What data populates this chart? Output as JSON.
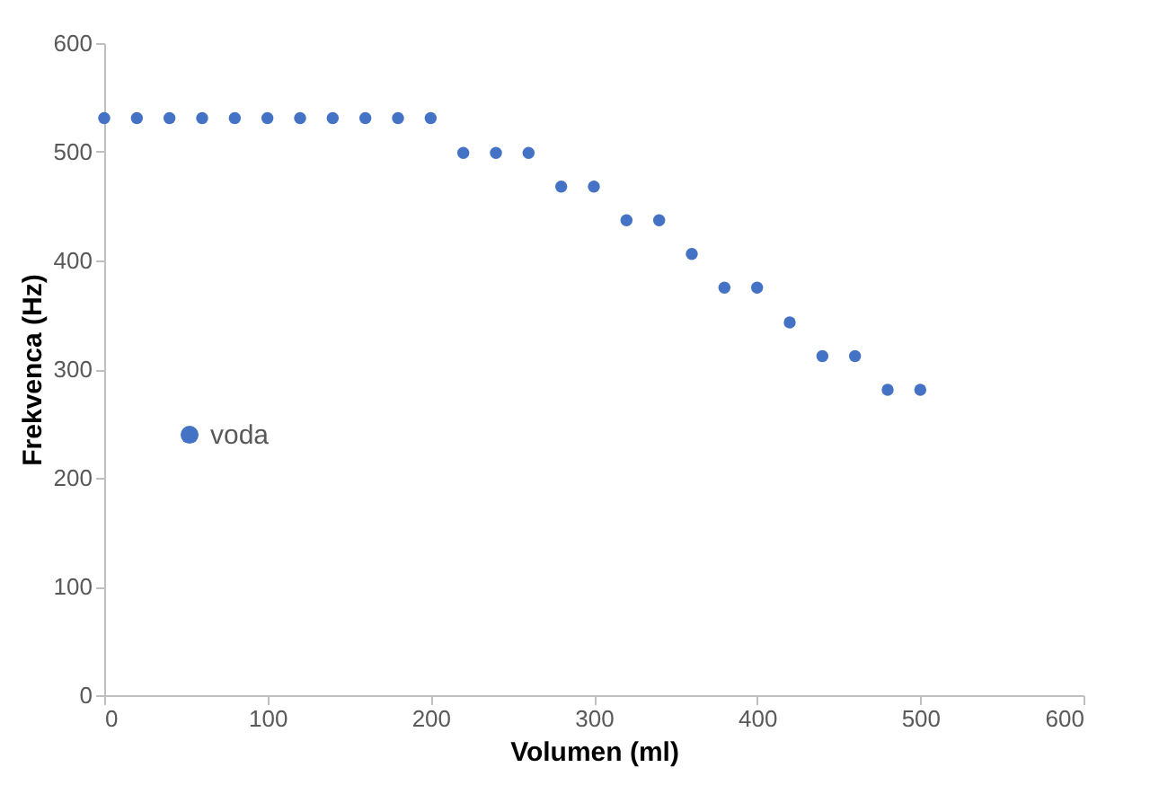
{
  "chart_data": {
    "type": "scatter",
    "xlabel": "Volumen (ml)",
    "ylabel": "Frekvenca (Hz)",
    "x": [
      0,
      20,
      40,
      60,
      80,
      100,
      120,
      140,
      160,
      180,
      200,
      220,
      240,
      260,
      280,
      300,
      320,
      340,
      360,
      380,
      400,
      420,
      440,
      460,
      480,
      500
    ],
    "series": [
      {
        "name": "voda",
        "color": "#4472c4",
        "values": [
          531,
          531,
          531,
          531,
          531,
          531,
          531,
          531,
          531,
          531,
          531,
          499,
          499,
          499,
          468,
          468,
          437,
          437,
          406,
          375,
          375,
          343,
          312,
          312,
          281,
          281
        ]
      }
    ],
    "xlim": [
      0,
      600
    ],
    "xticks": [
      0,
      100,
      200,
      300,
      400,
      500,
      600
    ],
    "ylim": [
      0,
      600
    ],
    "yticks": [
      0,
      100,
      200,
      300,
      400,
      500,
      600
    ],
    "grid": false,
    "legend": "left",
    "marker": "circle"
  }
}
